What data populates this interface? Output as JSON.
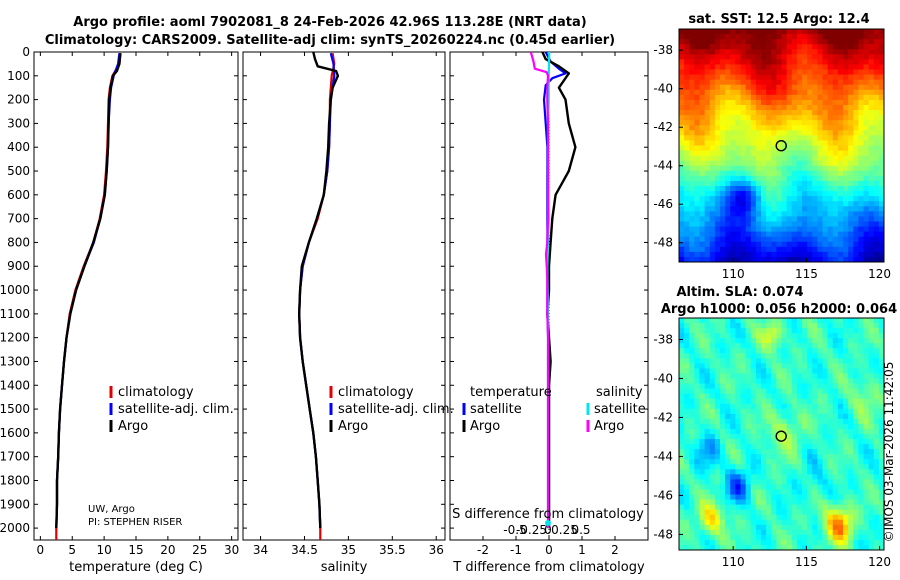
{
  "header": {
    "title_line1": "Argo profile: aoml 7902081_8 24-Feb-2026 42.96S 113.28E (NRT data)",
    "title_line2": "Climatology: CARS2009. Satellite-adj clim: synTS_20260224.nc (0.45d earlier)"
  },
  "colors": {
    "climatology": "#e00000",
    "satellite": "#0000ff",
    "argo": "#000000",
    "sal_satellite": "#00e5ee",
    "sal_argo": "#ff00ff"
  },
  "credits": {
    "line1": "UW, Argo",
    "line2": "PI: STEPHEN RISER",
    "timestamp": "©IMOS 03-Mar-2026 11:42:05"
  },
  "chart_data": [
    {
      "id": "temperature",
      "type": "line",
      "xlabel": "temperature (deg C)",
      "ylabel": "",
      "xlim": [
        -1,
        31
      ],
      "ylim": [
        2050,
        0
      ],
      "xticks": [
        0,
        5,
        10,
        15,
        20,
        25,
        30
      ],
      "yticks": [
        0,
        100,
        200,
        300,
        400,
        500,
        600,
        700,
        800,
        900,
        1000,
        1100,
        1200,
        1300,
        1400,
        1500,
        1600,
        1700,
        1800,
        1900,
        2000
      ],
      "legend": [
        "climatology",
        "satellite-adj. clim.",
        "Argo"
      ],
      "series": [
        {
          "name": "climatology",
          "depth": [
            5,
            50,
            100,
            150,
            200,
            300,
            400,
            500,
            600,
            700,
            800,
            900,
            1000,
            1100,
            1200,
            1300,
            1400,
            1500,
            1600,
            1700,
            1800,
            1900,
            2000,
            2050
          ],
          "values": [
            12.6,
            12.4,
            11.3,
            10.9,
            10.7,
            10.6,
            10.5,
            10.3,
            10.0,
            9.3,
            8.3,
            6.8,
            5.5,
            4.6,
            4.1,
            3.7,
            3.4,
            3.1,
            2.9,
            2.8,
            2.6,
            2.6,
            2.5,
            2.5
          ]
        },
        {
          "name": "satellite-adj. clim.",
          "depth": [
            5,
            50,
            100,
            150,
            200,
            300,
            400,
            500,
            600,
            700,
            800,
            900,
            1000,
            1100,
            1200,
            1300,
            1400,
            1500,
            1600,
            1700,
            1800,
            1900,
            2000
          ],
          "values": [
            12.4,
            12.2,
            11.5,
            11.1,
            10.9,
            10.7,
            10.6,
            10.4,
            10.1,
            9.4,
            8.4,
            6.9,
            5.6,
            4.7,
            4.1,
            3.7,
            3.4,
            3.1,
            2.9,
            2.8,
            2.6,
            2.6,
            2.5
          ]
        },
        {
          "name": "Argo",
          "depth": [
            5,
            50,
            80,
            100,
            150,
            200,
            300,
            400,
            500,
            600,
            700,
            800,
            900,
            1000,
            1100,
            1200,
            1300,
            1400,
            1500,
            1600,
            1700,
            1800,
            1900,
            2000
          ],
          "values": [
            12.5,
            12.4,
            12.0,
            11.4,
            11.0,
            10.8,
            10.7,
            10.6,
            10.4,
            10.1,
            9.4,
            8.3,
            6.9,
            5.6,
            4.7,
            4.1,
            3.7,
            3.4,
            3.1,
            2.9,
            2.8,
            2.6,
            2.6,
            2.5
          ]
        }
      ]
    },
    {
      "id": "salinity",
      "type": "line",
      "xlabel": "salinity",
      "ylabel": "",
      "xlim": [
        33.8,
        36.1
      ],
      "ylim": [
        2050,
        0
      ],
      "xticks": [
        34,
        34.5,
        35,
        35.5,
        36
      ],
      "legend": [
        "climatology",
        "satellite-adj. clim.",
        "Argo"
      ],
      "series": [
        {
          "name": "climatology",
          "depth": [
            5,
            50,
            100,
            150,
            200,
            300,
            400,
            500,
            600,
            700,
            800,
            900,
            1000,
            1100,
            1200,
            1300,
            1400,
            1500,
            1600,
            1700,
            1800,
            1900,
            2000,
            2050
          ],
          "values": [
            34.82,
            34.84,
            34.81,
            34.8,
            34.79,
            34.79,
            34.78,
            34.76,
            34.72,
            34.65,
            34.55,
            34.48,
            34.45,
            34.44,
            34.45,
            34.48,
            34.52,
            34.56,
            34.6,
            34.63,
            34.65,
            34.67,
            34.68,
            34.68
          ]
        },
        {
          "name": "satellite-adj. clim.",
          "depth": [
            5,
            50,
            100,
            150,
            200,
            300,
            400,
            500,
            600,
            700,
            800,
            900,
            1000,
            1100,
            1200,
            1300,
            1400,
            1500,
            1600,
            1700,
            1800,
            1900,
            2000
          ],
          "values": [
            34.8,
            34.83,
            34.84,
            34.82,
            34.8,
            34.79,
            34.78,
            34.76,
            34.72,
            34.64,
            34.55,
            34.48,
            34.45,
            34.44,
            34.45,
            34.48,
            34.52,
            34.56,
            34.6,
            34.63,
            34.65,
            34.67,
            34.68
          ]
        },
        {
          "name": "Argo",
          "depth": [
            0,
            30,
            60,
            80,
            100,
            150,
            200,
            300,
            400,
            500,
            600,
            700,
            800,
            900,
            1000,
            1100,
            1200,
            1300,
            1400,
            1500,
            1600,
            1700,
            1800,
            1900,
            2000
          ],
          "values": [
            34.6,
            34.62,
            34.65,
            34.86,
            34.88,
            34.82,
            34.8,
            34.78,
            34.77,
            34.75,
            34.72,
            34.64,
            34.55,
            34.47,
            34.45,
            34.44,
            34.45,
            34.48,
            34.52,
            34.56,
            34.6,
            34.63,
            34.65,
            34.67,
            34.68
          ]
        }
      ]
    },
    {
      "id": "difference",
      "type": "line",
      "xlabel": "T difference from climatology",
      "x2label": "S difference from climatology",
      "xlim": [
        -3,
        3
      ],
      "ylim": [
        2050,
        0
      ],
      "xticks": [
        -2,
        -1,
        0,
        1,
        2
      ],
      "x2ticks": [
        -0.5,
        -0.25,
        0,
        0.25,
        0.5
      ],
      "x2ticklabels": [
        "-0.5",
        "-0.25",
        "0",
        "0.25",
        "0.5"
      ],
      "legend_title_left": "temperature",
      "legend_title_right": "salinity",
      "legend": [
        "satellite",
        "Argo",
        "satellite",
        "Argo"
      ],
      "series": [
        {
          "name": "temperature satellite",
          "depth": [
            0,
            40,
            70,
            90,
            110,
            140,
            200,
            300,
            400,
            500,
            700,
            900,
            1100,
            1300,
            1500,
            1700,
            1900,
            2000
          ],
          "values": [
            -0.1,
            0.05,
            0.3,
            0.5,
            0.1,
            -0.1,
            -0.15,
            -0.1,
            -0.05,
            -0.05,
            -0.05,
            -0.05,
            -0.05,
            0,
            0,
            0,
            0,
            0
          ]
        },
        {
          "name": "temperature Argo",
          "depth": [
            0,
            30,
            60,
            90,
            110,
            150,
            200,
            300,
            400,
            500,
            550,
            600,
            700,
            800,
            900,
            1000,
            1100,
            1200,
            1300,
            1400,
            1500,
            1600,
            1700,
            1800,
            1900,
            2000
          ],
          "values": [
            -0.2,
            -0.1,
            0.3,
            0.6,
            0.5,
            0.3,
            0.5,
            0.6,
            0.8,
            0.6,
            0.4,
            0.2,
            0.1,
            0.05,
            0,
            0,
            -0.05,
            0,
            0.05,
            0,
            0,
            0,
            0,
            0,
            0,
            0
          ]
        },
        {
          "name": "salinity satellite",
          "depth": [
            0,
            100,
            200,
            300,
            400,
            500,
            600,
            700,
            800,
            900,
            1000,
            1100,
            1200,
            1300,
            1400,
            1500,
            1600,
            1700,
            1800,
            1900,
            2000
          ],
          "values": [
            0.02,
            0.01,
            0.01,
            0.0,
            0.0,
            0.0,
            0.005,
            0.01,
            0.0,
            -0.01,
            -0.005,
            0.0,
            0.0,
            0.0,
            0.0,
            0.0,
            0.0,
            0.0,
            0.0,
            0.0,
            0.0
          ]
        },
        {
          "name": "salinity Argo",
          "depth": [
            0,
            40,
            70,
            85,
            100,
            150,
            200,
            300,
            400,
            500,
            600,
            700,
            800,
            850,
            900,
            950,
            1000,
            1100,
            1200,
            1300,
            1400,
            1500,
            1600,
            1700,
            1800,
            1900,
            2000
          ],
          "values": [
            -0.26,
            -0.22,
            -0.2,
            -0.02,
            0.0,
            -0.01,
            -0.01,
            0.0,
            0.0,
            0.0,
            0.0,
            0.0,
            -0.01,
            -0.03,
            -0.02,
            -0.01,
            -0.01,
            -0.01,
            0.0,
            0.0,
            0.0,
            0.0,
            0.0,
            0.0,
            0.0,
            0.0,
            0.0
          ]
        }
      ]
    },
    {
      "id": "sst_map",
      "type": "heatmap",
      "title": "sat. SST: 12.5 Argo: 12.4",
      "xticks": [
        110,
        115,
        120
      ],
      "yticks": [
        -38,
        -40,
        -42,
        -44,
        -46,
        -48
      ],
      "xlim": [
        106.3,
        120.3
      ],
      "ylim": [
        -49.0,
        -36.9
      ],
      "marker": {
        "lon": 113.28,
        "lat": -42.96
      }
    },
    {
      "id": "sla_map",
      "type": "heatmap",
      "title_line1": "Altim. SLA: 0.074",
      "title_line2": "Argo h1000: 0.056 h2000: 0.064",
      "xticks": [
        110,
        115,
        120
      ],
      "yticks": [
        -38,
        -40,
        -42,
        -44,
        -46,
        -48
      ],
      "xlim": [
        106.3,
        120.3
      ],
      "ylim": [
        -48.8,
        -36.9
      ],
      "marker": {
        "lon": 113.28,
        "lat": -42.96
      }
    }
  ]
}
